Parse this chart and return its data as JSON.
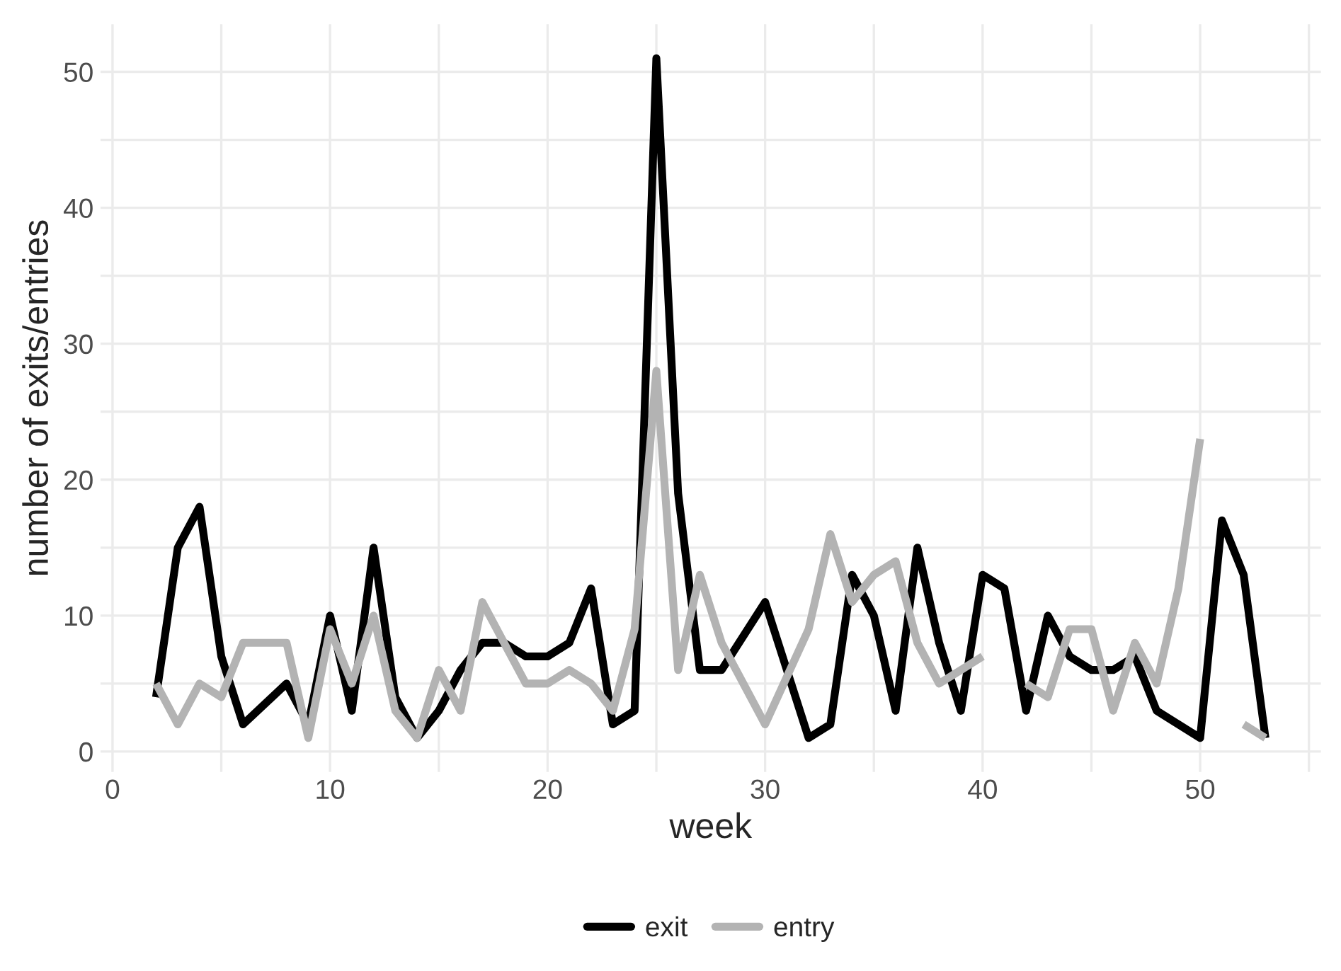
{
  "chart_data": {
    "type": "line",
    "xlabel": "week",
    "ylabel": "number of exits/entries",
    "xlim": [
      -0.55,
      55.55
    ],
    "ylim": [
      -1.5,
      53.5
    ],
    "xticks": [
      0,
      {
        "value": 5,
        "label": null
      },
      10,
      {
        "value": 15,
        "label": null
      },
      20,
      {
        "value": 25,
        "label": null
      },
      30,
      {
        "value": 35,
        "label": null
      },
      40,
      {
        "value": 45,
        "label": null
      },
      50,
      {
        "value": 55,
        "label": null
      }
    ],
    "yticks": [
      0,
      {
        "value": 5,
        "label": null
      },
      10,
      {
        "value": 15,
        "label": null
      },
      20,
      {
        "value": 25,
        "label": null
      },
      30,
      {
        "value": 35,
        "label": null
      },
      40,
      {
        "value": 45,
        "label": null
      },
      50
    ],
    "grid": true,
    "legend": "bottom",
    "line_style": "solid",
    "series": [
      {
        "name": "exit",
        "color": "#000000",
        "x": [
          2,
          3,
          4,
          5,
          6,
          8,
          9,
          10,
          11,
          12,
          13,
          14,
          15,
          16,
          17,
          18,
          19,
          20,
          21,
          22,
          23,
          24,
          25,
          26,
          27,
          28,
          30,
          31,
          32,
          33,
          34,
          35,
          36,
          37,
          38,
          39,
          40,
          41,
          42,
          43,
          44,
          45,
          46,
          47,
          48,
          49,
          50,
          51,
          52,
          53
        ],
        "values": [
          4,
          15,
          18,
          7,
          2,
          5,
          2,
          10,
          3,
          15,
          4,
          1,
          3,
          6,
          8,
          8,
          7,
          7,
          8,
          12,
          2,
          3,
          51,
          19,
          6,
          6,
          11,
          6,
          1,
          2,
          13,
          10,
          3,
          15,
          8,
          3,
          13,
          12,
          3,
          10,
          7,
          6,
          6,
          7,
          3,
          2,
          1,
          17,
          13,
          1
        ]
      },
      {
        "name": "entry",
        "color": "#b3b3b3",
        "x": [
          2,
          3,
          4,
          5,
          6,
          7,
          8,
          9,
          10,
          11,
          12,
          13,
          14,
          15,
          16,
          17,
          18,
          19,
          20,
          21,
          22,
          23,
          24,
          25,
          26,
          27,
          28,
          29,
          30,
          32,
          33,
          34,
          35,
          36,
          37,
          38,
          39,
          40,
          41,
          42,
          43,
          44,
          45,
          46,
          47,
          48,
          49,
          50,
          51,
          52,
          53
        ],
        "values": [
          5,
          2,
          5,
          4,
          8,
          8,
          8,
          1,
          9,
          5,
          10,
          3,
          1,
          6,
          3,
          11,
          8,
          5,
          5,
          6,
          5,
          3,
          9,
          28,
          6,
          13,
          8,
          5,
          2,
          9,
          16,
          11,
          13,
          14,
          8,
          5,
          6,
          7,
          null,
          5,
          4,
          9,
          9,
          3,
          8,
          5,
          12,
          23,
          null,
          2,
          1
        ]
      }
    ]
  }
}
